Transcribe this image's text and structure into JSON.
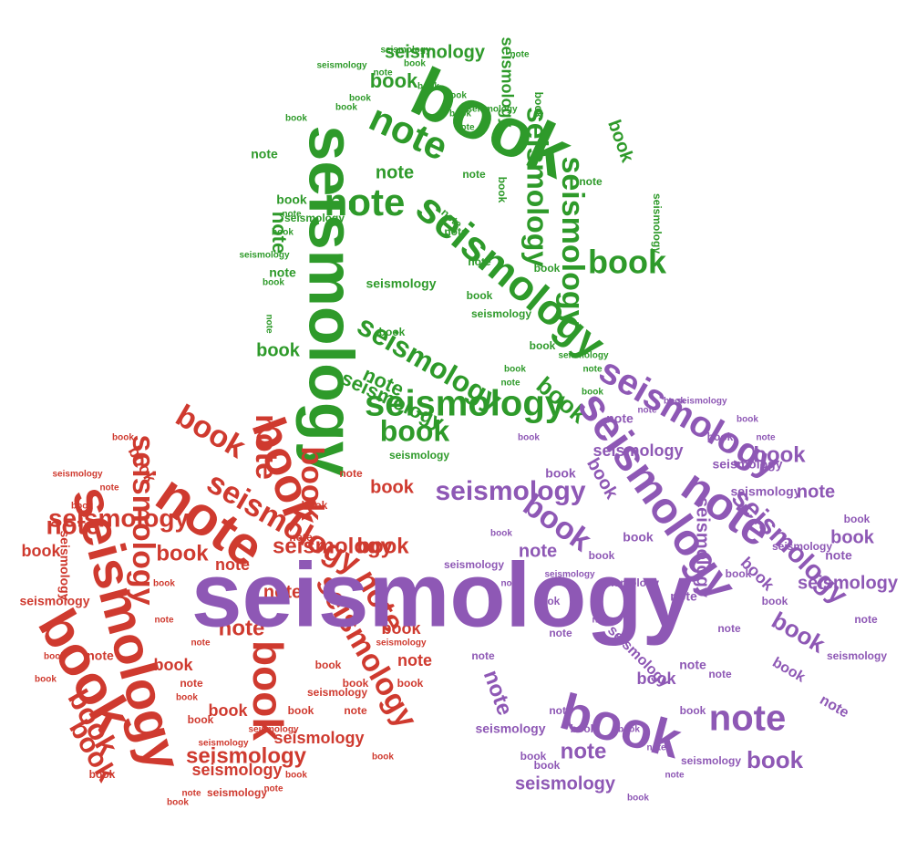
{
  "words": [
    "seismology",
    "book",
    "note"
  ],
  "clusters": [
    {
      "name": "green-cluster",
      "color": "#2e9a2a",
      "words": [
        "book",
        "seismology",
        "seismology",
        "note",
        "note",
        "seismology",
        "seismology",
        "book",
        "book",
        "seismology",
        "book",
        "note",
        "book",
        "note",
        "seismology",
        "seismology",
        "book",
        "note",
        "seismology",
        "book",
        "seismology",
        "note",
        "book",
        "note",
        "book",
        "seismology",
        "note",
        "note",
        "book",
        "seismology",
        "book",
        "note",
        "seismology",
        "book",
        "seismology",
        "book",
        "book",
        "note",
        "note",
        "seismology",
        "note",
        "book",
        "seismology",
        "book",
        "note",
        "seismology",
        "book",
        "note",
        "seismology",
        "book",
        "note",
        "book",
        "seismology",
        "book",
        "note",
        "book",
        "book",
        "book",
        "seismology",
        "note",
        "book",
        "book",
        "note"
      ]
    },
    {
      "name": "red-cluster",
      "color": "#cf3a2f",
      "words": [
        "book",
        "seismology",
        "note",
        "seismology",
        "book",
        "book",
        "book",
        "book",
        "note",
        "book",
        "seismology",
        "seismology",
        "note",
        "seismology",
        "book",
        "note",
        "seismology",
        "book",
        "note",
        "seismology",
        "book",
        "note",
        "book",
        "note",
        "book",
        "book",
        "note",
        "seismology",
        "book",
        "seismology",
        "book",
        "seismology",
        "book",
        "seismology",
        "note",
        "book",
        "seismology",
        "note",
        "book",
        "book",
        "book",
        "seismology",
        "book",
        "note",
        "note",
        "book",
        "seismology",
        "book",
        "note",
        "book",
        "seismology",
        "book",
        "note",
        "book",
        "note",
        "book",
        "seismology",
        "book",
        "seismology",
        "note",
        "book",
        "note",
        "book",
        "book",
        "note",
        "book"
      ]
    },
    {
      "name": "purple-cluster",
      "color": "#8e58b5",
      "words": [
        "seismology",
        "book",
        "note",
        "seismology",
        "seismology",
        "book",
        "note",
        "book",
        "seismology",
        "book",
        "note",
        "seismology",
        "note",
        "seismology",
        "book",
        "note",
        "book",
        "seismology",
        "note",
        "seismology",
        "book",
        "seismology",
        "book",
        "book",
        "note",
        "book",
        "seismology",
        "note",
        "book",
        "note",
        "seismology",
        "book",
        "note",
        "book",
        "note",
        "seismology",
        "seismology",
        "book",
        "note",
        "book",
        "seismology",
        "note",
        "book",
        "seismology",
        "note",
        "book",
        "note",
        "seismology",
        "book",
        "note",
        "book",
        "seismology",
        "note",
        "book",
        "book",
        "seismology",
        "note",
        "book",
        "note",
        "book",
        "book",
        "note",
        "seismology",
        "book",
        "note",
        "book",
        "book",
        "seismology",
        "note",
        "book",
        "note"
      ]
    }
  ]
}
